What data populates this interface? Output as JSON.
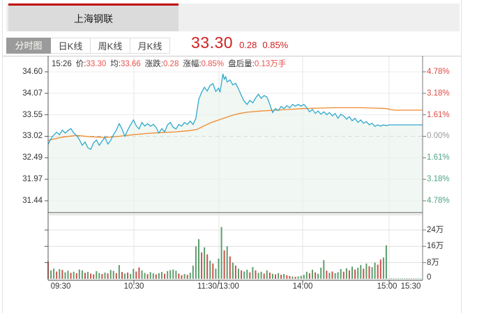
{
  "window": {
    "bg": "#ffffff",
    "border_color": "#e2e2e2"
  },
  "header": {
    "active_stock_tab": "上海钢联",
    "accent_color": "#c00000",
    "strip_bg": "#efefef"
  },
  "toolbar": {
    "tabs": [
      {
        "label": "分时图",
        "active": true
      },
      {
        "label": "日K线",
        "active": false
      },
      {
        "label": "周K线",
        "active": false
      },
      {
        "label": "月K线",
        "active": false
      }
    ],
    "quote": {
      "price": "33.30",
      "change": "0.28",
      "change_pct": "0.85%",
      "color": "#d02020"
    }
  },
  "info_bar": {
    "time": "15:26",
    "items": [
      {
        "label": "价:",
        "value": "33.30"
      },
      {
        "label": "均:",
        "value": "33.66"
      },
      {
        "label": "涨跌:",
        "value": "0.28"
      },
      {
        "label": "涨幅:",
        "value": "0.85%"
      },
      {
        "label": "盘后量:",
        "value": "0.13万手"
      }
    ],
    "label_color": "#333333",
    "value_color": "#e8544d"
  },
  "axes": {
    "price_left": [
      "34.60",
      "34.07",
      "33.55",
      "33.02",
      "32.49",
      "31.97",
      "31.44"
    ],
    "pct_right": [
      {
        "label": "4.78%",
        "color": "#df4a45"
      },
      {
        "label": "3.18%",
        "color": "#df4a45"
      },
      {
        "label": "1.61%",
        "color": "#df4a45"
      },
      {
        "label": "0.00%",
        "color": "#9a9a9a"
      },
      {
        "label": "1.61%",
        "color": "#4fa383"
      },
      {
        "label": "3.18%",
        "color": "#4fa383"
      },
      {
        "label": "4.78%",
        "color": "#4fa383"
      }
    ],
    "volume_right": [
      "24万",
      "16万",
      "8万",
      "0"
    ],
    "time_labels": [
      "09:30",
      "10:30",
      "11:30/13:00",
      "14:00",
      "15:00",
      "15:30"
    ]
  },
  "chart_data": {
    "type": "line",
    "title": "上海钢联 分时图",
    "x_axis": {
      "session_minutes": 240,
      "after_hours_minutes": 30,
      "tick_labels": [
        "09:30",
        "10:30",
        "11:30/13:00",
        "14:00",
        "15:00",
        "15:30"
      ]
    },
    "price_panel": {
      "ylim": [
        31.44,
        34.6
      ],
      "prev_close": 33.02,
      "grid_levels": [
        34.6,
        34.07,
        33.55,
        33.02,
        32.49,
        31.97,
        31.44
      ],
      "pct_levels": [
        "4.78%",
        "3.18%",
        "1.61%",
        "0.00%",
        "-1.61%",
        "-3.18%",
        "-4.78%"
      ],
      "fill_color": "#e9f3ec",
      "series": [
        {
          "name": "price",
          "color": "#2fa9cc",
          "points": [
            [
              0,
              32.82
            ],
            [
              2,
              32.96
            ],
            [
              4,
              33.05
            ],
            [
              6,
              33.12
            ],
            [
              8,
              33.06
            ],
            [
              10,
              33.17
            ],
            [
              12,
              33.1
            ],
            [
              14,
              33.16
            ],
            [
              16,
              33.21
            ],
            [
              18,
              33.1
            ],
            [
              20,
              33.04
            ],
            [
              22,
              32.94
            ],
            [
              24,
              32.8
            ],
            [
              26,
              32.88
            ],
            [
              28,
              32.74
            ],
            [
              30,
              32.7
            ],
            [
              32,
              32.86
            ],
            [
              34,
              32.93
            ],
            [
              36,
              32.8
            ],
            [
              38,
              32.9
            ],
            [
              40,
              33.0
            ],
            [
              42,
              32.83
            ],
            [
              44,
              32.92
            ],
            [
              46,
              33.06
            ],
            [
              48,
              33.17
            ],
            [
              50,
              33.33
            ],
            [
              52,
              33.2
            ],
            [
              54,
              33.02
            ],
            [
              56,
              33.17
            ],
            [
              58,
              33.3
            ],
            [
              60,
              33.42
            ],
            [
              62,
              33.28
            ],
            [
              64,
              33.2
            ],
            [
              66,
              33.36
            ],
            [
              68,
              33.27
            ],
            [
              70,
              33.33
            ],
            [
              72,
              33.27
            ],
            [
              74,
              33.31
            ],
            [
              76,
              33.24
            ],
            [
              78,
              33.1
            ],
            [
              80,
              33.21
            ],
            [
              82,
              33.13
            ],
            [
              84,
              33.3
            ],
            [
              86,
              33.36
            ],
            [
              88,
              33.24
            ],
            [
              90,
              33.2
            ],
            [
              92,
              33.31
            ],
            [
              94,
              33.27
            ],
            [
              96,
              33.36
            ],
            [
              98,
              33.31
            ],
            [
              100,
              33.39
            ],
            [
              102,
              33.31
            ],
            [
              104,
              33.46
            ],
            [
              106,
              33.92
            ],
            [
              108,
              34.1
            ],
            [
              110,
              34.22
            ],
            [
              112,
              34.13
            ],
            [
              114,
              34.27
            ],
            [
              116,
              34.31
            ],
            [
              118,
              34.12
            ],
            [
              120,
              34.2
            ],
            [
              121,
              34.1
            ],
            [
              123,
              34.55
            ],
            [
              124,
              34.42
            ],
            [
              125,
              34.48
            ],
            [
              126,
              34.35
            ],
            [
              128,
              34.4
            ],
            [
              130,
              34.28
            ],
            [
              132,
              34.32
            ],
            [
              134,
              34.18
            ],
            [
              136,
              34.02
            ],
            [
              138,
              33.88
            ],
            [
              140,
              33.8
            ],
            [
              142,
              33.9
            ],
            [
              144,
              33.84
            ],
            [
              146,
              33.96
            ],
            [
              148,
              34.05
            ],
            [
              150,
              33.95
            ],
            [
              152,
              34.02
            ],
            [
              154,
              33.98
            ],
            [
              156,
              33.8
            ],
            [
              158,
              33.6
            ],
            [
              160,
              33.7
            ],
            [
              162,
              33.65
            ],
            [
              164,
              33.75
            ],
            [
              166,
              33.7
            ],
            [
              168,
              33.77
            ],
            [
              170,
              33.72
            ],
            [
              172,
              33.8
            ],
            [
              174,
              33.76
            ],
            [
              176,
              33.8
            ],
            [
              178,
              33.76
            ],
            [
              180,
              33.8
            ],
            [
              182,
              33.72
            ],
            [
              184,
              33.62
            ],
            [
              186,
              33.68
            ],
            [
              188,
              33.58
            ],
            [
              190,
              33.64
            ],
            [
              192,
              33.56
            ],
            [
              194,
              33.62
            ],
            [
              196,
              33.55
            ],
            [
              198,
              33.6
            ],
            [
              200,
              33.52
            ],
            [
              202,
              33.58
            ],
            [
              204,
              33.46
            ],
            [
              206,
              33.56
            ],
            [
              208,
              33.52
            ],
            [
              210,
              33.44
            ],
            [
              212,
              33.5
            ],
            [
              214,
              33.4
            ],
            [
              216,
              33.46
            ],
            [
              218,
              33.36
            ],
            [
              220,
              33.42
            ],
            [
              222,
              33.34
            ],
            [
              224,
              33.38
            ],
            [
              226,
              33.3
            ],
            [
              228,
              33.34
            ],
            [
              230,
              33.26
            ],
            [
              232,
              33.3
            ],
            [
              234,
              33.27
            ],
            [
              236,
              33.3
            ],
            [
              238,
              33.28
            ],
            [
              240,
              33.3
            ],
            [
              270,
              33.3
            ]
          ]
        },
        {
          "name": "average",
          "color": "#f08a2e",
          "points": [
            [
              0,
              32.92
            ],
            [
              10,
              33.0
            ],
            [
              20,
              33.04
            ],
            [
              30,
              33.01
            ],
            [
              40,
              32.99
            ],
            [
              50,
              33.02
            ],
            [
              60,
              33.06
            ],
            [
              70,
              33.09
            ],
            [
              80,
              33.11
            ],
            [
              90,
              33.13
            ],
            [
              100,
              33.16
            ],
            [
              105,
              33.19
            ],
            [
              110,
              33.28
            ],
            [
              115,
              33.36
            ],
            [
              120,
              33.42
            ],
            [
              125,
              33.48
            ],
            [
              130,
              33.54
            ],
            [
              135,
              33.58
            ],
            [
              140,
              33.61
            ],
            [
              150,
              33.64
            ],
            [
              160,
              33.66
            ],
            [
              170,
              33.68
            ],
            [
              180,
              33.7
            ],
            [
              190,
              33.71
            ],
            [
              200,
              33.72
            ],
            [
              210,
              33.72
            ],
            [
              220,
              33.72
            ],
            [
              230,
              33.71
            ],
            [
              238,
              33.7
            ],
            [
              242,
              33.67
            ],
            [
              245,
              33.66
            ],
            [
              270,
              33.66
            ]
          ]
        }
      ]
    },
    "volume_panel": {
      "unit": "万手",
      "ylim": [
        0,
        24
      ],
      "grid_levels": [
        24,
        16,
        8
      ],
      "bar_interval_min": 2,
      "up_color": "#5b9e6d",
      "down_color": "#c9524a",
      "values": [
        8.5,
        4.2,
        5.0,
        3.6,
        4.8,
        4.4,
        3.2,
        4.0,
        3.0,
        3.5,
        2.8,
        4.6,
        4.2,
        3.0,
        3.4,
        2.6,
        2.2,
        3.8,
        2.9,
        2.4,
        3.1,
        2.7,
        4.4,
        3.9,
        2.8,
        6.8,
        3.4,
        2.6,
        3.1,
        2.4,
        4.9,
        3.6,
        5.6,
        4.1,
        2.9,
        2.3,
        3.3,
        2.7,
        2.2,
        2.8,
        3.4,
        2.5,
        3.8,
        4.3,
        4.6,
        4.0,
        2.6,
        1.8,
        2.4,
        2.0,
        3.0,
        6.5,
        16.0,
        19.5,
        13.0,
        15.5,
        12.0,
        9.0,
        7.5,
        5.0,
        10.0,
        25.5,
        14.0,
        16.0,
        11.0,
        8.0,
        6.5,
        5.0,
        4.2,
        3.6,
        4.5,
        3.2,
        5.8,
        4.1,
        3.0,
        3.5,
        2.6,
        4.2,
        3.1,
        2.5,
        2.2,
        2.8,
        2.0,
        2.4,
        1.8,
        1.4,
        1.2,
        1.0,
        1.2,
        1.5,
        2.0,
        3.5,
        2.8,
        4.5,
        3.2,
        2.5,
        5.5,
        9.2,
        4.0,
        3.0,
        3.6,
        2.8,
        3.3,
        4.8,
        3.5,
        5.2,
        4.2,
        6.0,
        4.6,
        5.5,
        6.8,
        5.0,
        7.5,
        6.2,
        5.8,
        8.0,
        7.0,
        9.5,
        10.5,
        16.5
      ],
      "colors": "rggrgrggrgrggrgrrggrgrggrgrgrggrrggrggrggrggggrrgrggggrgrgrgggrgrgrgrggrgrggrgrgrgrgrrgrggggrgrgggrgrgggrgrgrggrgrggrrgg",
      "after_hours": {
        "bars": 15,
        "value": 0.15,
        "color": "g"
      }
    }
  }
}
